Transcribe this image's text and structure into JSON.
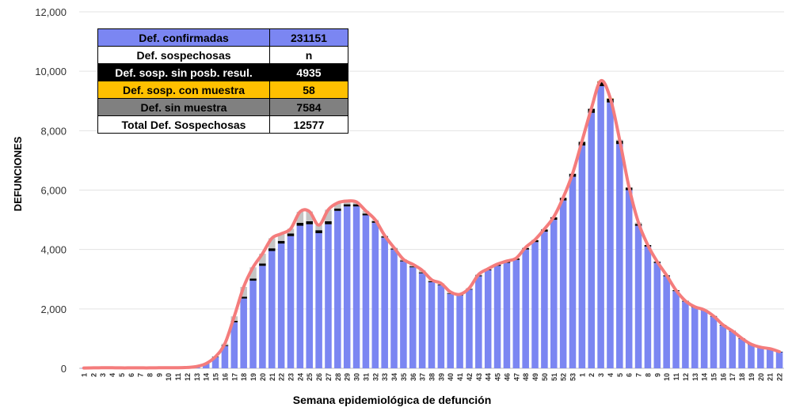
{
  "colors": {
    "confirmed": "#7b86f2",
    "no_result": "#000000",
    "with_sample": "#ffc000",
    "no_sample": "#c4c4c4",
    "curve": "#f47c7c"
  },
  "legend_table": [
    {
      "label": "Def. confirmadas",
      "value": "231151"
    },
    {
      "label": "Def. sospechosas",
      "value": "n"
    },
    {
      "label": "Def. sosp. sin posb. resul.",
      "value": "4935"
    },
    {
      "label": "Def. sosp. con  muestra",
      "value": "58"
    },
    {
      "label": "Def. sin muestra",
      "value": "7584"
    },
    {
      "label": "Total Def. Sospechosas",
      "value": "12577"
    }
  ],
  "chart_data": {
    "type": "bar",
    "xlabel": "Semana epidemiológica de defunción",
    "ylabel": "DEFUNCIONES",
    "ylim": [
      0,
      12000
    ],
    "yticks": [
      0,
      2000,
      4000,
      6000,
      8000,
      10000,
      12000
    ],
    "ytick_labels": [
      "0",
      "2,000",
      "4,000",
      "6,000",
      "8,000",
      "10,000",
      "12,000"
    ],
    "grid": true,
    "categories": [
      "1",
      "2",
      "3",
      "4",
      "5",
      "6",
      "7",
      "8",
      "9",
      "10",
      "11",
      "12",
      "13",
      "14",
      "15",
      "16",
      "17",
      "18",
      "19",
      "20",
      "21",
      "22",
      "23",
      "24",
      "25",
      "26",
      "27",
      "28",
      "29",
      "30",
      "31",
      "32",
      "33",
      "34",
      "35",
      "36",
      "37",
      "38",
      "39",
      "40",
      "41",
      "42",
      "43",
      "44",
      "45",
      "46",
      "47",
      "48",
      "49",
      "50",
      "51",
      "52",
      "53",
      "1",
      "2",
      "3",
      "4",
      "5",
      "6",
      "7",
      "8",
      "9",
      "10",
      "11",
      "12",
      "13",
      "14",
      "15",
      "16",
      "17",
      "18",
      "19",
      "20",
      "21",
      "22"
    ],
    "series": [
      {
        "name": "Def. confirmadas",
        "values": [
          10,
          15,
          20,
          20,
          15,
          15,
          15,
          15,
          20,
          20,
          20,
          30,
          60,
          160,
          380,
          750,
          1550,
          2350,
          2950,
          3450,
          3950,
          4200,
          4450,
          4800,
          4850,
          4550,
          4850,
          5300,
          5450,
          5450,
          5150,
          4900,
          4400,
          4000,
          3600,
          3400,
          3200,
          2900,
          2800,
          2500,
          2450,
          2650,
          3100,
          3300,
          3450,
          3550,
          3650,
          4000,
          4250,
          4600,
          5000,
          5650,
          6450,
          7500,
          8600,
          9500,
          8950,
          7550,
          6000,
          4800,
          4100,
          3550,
          3100,
          2600,
          2250,
          2050,
          1950,
          1750,
          1450,
          1250,
          1000,
          800,
          700,
          650,
          550
        ]
      },
      {
        "name": "Def. sosp. sin posb. resul.",
        "values": [
          0,
          0,
          0,
          0,
          0,
          0,
          0,
          0,
          0,
          0,
          0,
          0,
          0,
          0,
          10,
          30,
          50,
          60,
          70,
          80,
          90,
          90,
          90,
          100,
          100,
          100,
          100,
          80,
          70,
          70,
          60,
          50,
          40,
          30,
          30,
          30,
          30,
          30,
          20,
          20,
          20,
          20,
          30,
          30,
          40,
          50,
          50,
          50,
          60,
          70,
          80,
          90,
          100,
          120,
          140,
          150,
          130,
          110,
          80,
          60,
          50,
          40,
          30,
          30,
          20,
          20,
          20,
          10,
          10,
          10,
          10,
          10,
          10,
          10,
          10
        ]
      },
      {
        "name": "Def. sosp. con  muestra",
        "values": [
          0,
          0,
          0,
          0,
          0,
          0,
          0,
          0,
          0,
          0,
          0,
          0,
          0,
          0,
          0,
          0,
          0,
          0,
          0,
          0,
          0,
          0,
          0,
          0,
          0,
          0,
          0,
          0,
          0,
          0,
          0,
          0,
          0,
          0,
          0,
          0,
          0,
          0,
          0,
          0,
          0,
          0,
          0,
          0,
          0,
          0,
          0,
          0,
          0,
          0,
          0,
          0,
          0,
          0,
          0,
          10,
          10,
          0,
          0,
          0,
          0,
          0,
          0,
          0,
          0,
          0,
          0,
          0,
          0,
          0,
          0,
          0,
          0,
          0,
          0
        ]
      },
      {
        "name": "Def. sin muestra",
        "values": [
          0,
          0,
          0,
          0,
          0,
          0,
          0,
          0,
          0,
          0,
          0,
          0,
          0,
          0,
          0,
          50,
          150,
          330,
          380,
          330,
          340,
          240,
          160,
          370,
          330,
          170,
          390,
          190,
          110,
          80,
          90,
          50,
          30,
          30,
          40,
          70,
          70,
          50,
          40,
          50,
          20,
          30,
          30,
          20,
          20,
          10,
          10,
          20,
          20,
          20,
          20,
          10,
          10,
          30,
          10,
          20,
          10,
          40,
          20,
          50,
          0,
          0,
          0,
          0,
          0,
          0,
          0,
          0,
          0,
          0,
          0,
          0,
          0,
          0,
          0
        ]
      }
    ]
  }
}
